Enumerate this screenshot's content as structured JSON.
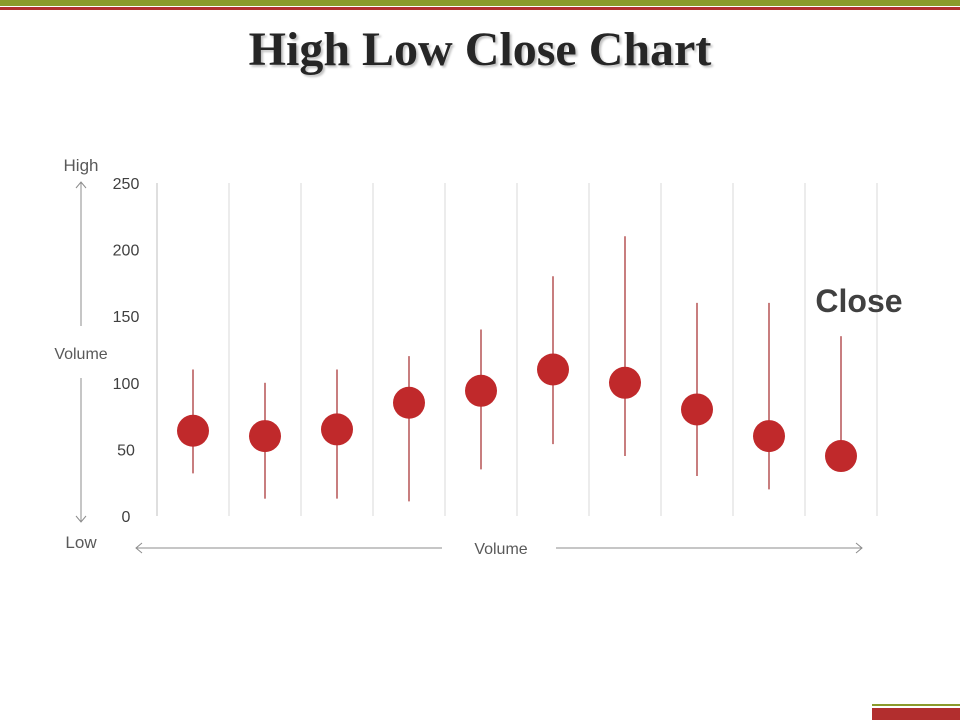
{
  "slide": {
    "title": "High Low Close Chart"
  },
  "colors": {
    "accent_red": "#b22e2e",
    "accent_olive": "#8a9a2b",
    "marker": "#c0292b",
    "whisker": "#a3282a",
    "grid": "#d9d9d9",
    "text": "#595959"
  },
  "chart_data": {
    "type": "scatter",
    "y_axis_labels": {
      "top": "High",
      "middle": "Volume",
      "bottom": "Low"
    },
    "x_axis_label": "Volume",
    "series_label": "Close",
    "ylim": [
      0,
      250
    ],
    "yticks": [
      0,
      50,
      100,
      150,
      200,
      250
    ],
    "grid": true,
    "points": [
      {
        "high": 110,
        "low": 32,
        "close": 64
      },
      {
        "high": 100,
        "low": 13,
        "close": 60
      },
      {
        "high": 110,
        "low": 13,
        "close": 65
      },
      {
        "high": 120,
        "low": 11,
        "close": 85
      },
      {
        "high": 140,
        "low": 35,
        "close": 94
      },
      {
        "high": 180,
        "low": 54,
        "close": 110
      },
      {
        "high": 210,
        "low": 45,
        "close": 100
      },
      {
        "high": 160,
        "low": 30,
        "close": 80
      },
      {
        "high": 160,
        "low": 20,
        "close": 60
      },
      {
        "high": 135,
        "low": 42,
        "close": 45
      }
    ]
  }
}
